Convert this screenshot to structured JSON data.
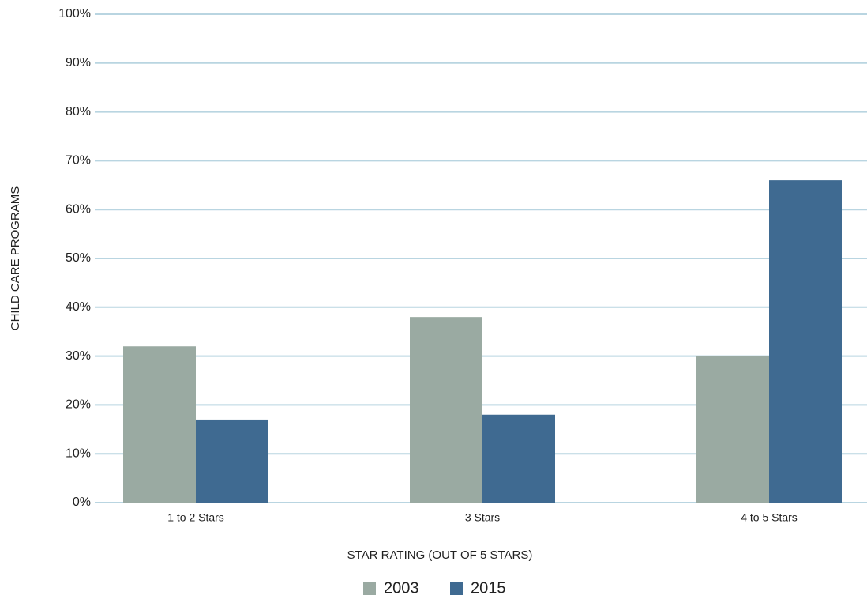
{
  "chart_data": {
    "type": "bar",
    "x_label": "STAR RATING (OUT OF 5 STARS)",
    "y_label": "CHILD CARE PROGRAMS",
    "categories": [
      "1 to 2 Stars",
      "3 Stars",
      "4 to 5 Stars"
    ],
    "series": [
      {
        "name": "2003",
        "color": "#9aaaa2",
        "values": [
          32,
          38,
          30
        ]
      },
      {
        "name": "2015",
        "color": "#3f6a91",
        "values": [
          17,
          18,
          66
        ]
      }
    ],
    "ylim": [
      0,
      100
    ],
    "yticks": [
      {
        "value": 0,
        "label": "0%"
      },
      {
        "value": 10,
        "label": "10%"
      },
      {
        "value": 20,
        "label": "20%"
      },
      {
        "value": 30,
        "label": "30%"
      },
      {
        "value": 40,
        "label": "40%"
      },
      {
        "value": 50,
        "label": "50%"
      },
      {
        "value": 60,
        "label": "60%"
      },
      {
        "value": 70,
        "label": "70%"
      },
      {
        "value": 80,
        "label": "80%"
      },
      {
        "value": 90,
        "label": "90%"
      },
      {
        "value": 100,
        "label": "100%"
      }
    ],
    "grid": true,
    "legend": "bottom"
  }
}
